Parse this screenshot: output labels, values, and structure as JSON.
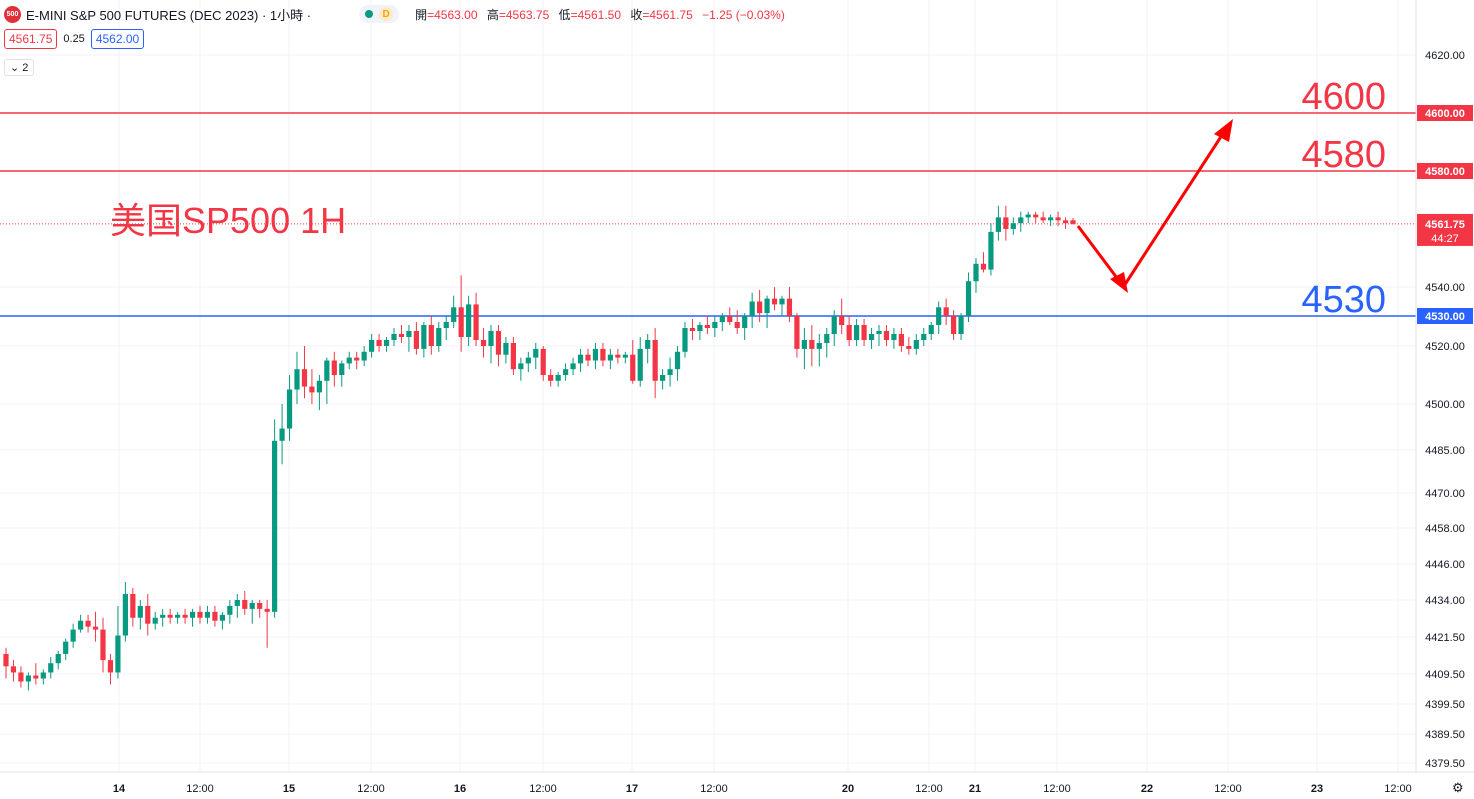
{
  "header": {
    "logo_text": "500",
    "title": "E-MINI S&P 500 FUTURES (DEC 2023) · 1小時 ·",
    "status_letter": "D",
    "ohlc": [
      {
        "label": "開",
        "value": "=4563.00"
      },
      {
        "label": "高",
        "value": "=4563.75"
      },
      {
        "label": "低",
        "value": "=4561.50"
      },
      {
        "label": "收",
        "value": "=4561.75"
      }
    ],
    "change": "−1.25 (−0.03%)"
  },
  "quote": {
    "sell": "4561.75",
    "spread": "0.25",
    "buy": "4562.00"
  },
  "collapse_label": "2",
  "chart_data": {
    "type": "candlestick",
    "title": "E-MINI S&P 500 FUTURES (DEC 2023)",
    "ylim": [
      4375,
      4640
    ],
    "y_ticks": [
      "4620.00",
      "4580.00",
      "4540.00",
      "4520.00",
      "4500.00",
      "4485.00",
      "4470.00",
      "4458.00",
      "4446.00",
      "4434.00",
      "4421.50",
      "4409.50",
      "4399.50",
      "4389.50",
      "4379.50"
    ],
    "x_ticks": [
      "14",
      "12:00",
      "15",
      "12:00",
      "16",
      "12:00",
      "17",
      "12:00",
      "20",
      "12:00",
      "21",
      "12:00",
      "22",
      "12:00",
      "23",
      "12:00"
    ],
    "annotation_text": "美国SP500 1H",
    "levels": [
      {
        "label": "4600",
        "price_tag": "4600.00",
        "value": 4600,
        "color": "#f23645"
      },
      {
        "label": "4580",
        "price_tag": "4580.00",
        "value": 4580,
        "color": "#f23645"
      },
      {
        "label": "4530",
        "price_tag": "4530.00",
        "value": 4530,
        "color": "#2962ff"
      }
    ],
    "last_price": {
      "value": 4561.75,
      "label": "4561.75",
      "countdown": "44:27",
      "color": "#f23645"
    },
    "forecast_arrow": {
      "points": [
        [
          4561.5,
          "21 13:00"
        ],
        [
          4540,
          "21 19:00"
        ],
        [
          4598,
          "22 05:00"
        ]
      ],
      "color": "#ff0000"
    },
    "candles_ohlc": [
      [
        4416,
        4418,
        4408,
        4412
      ],
      [
        4412,
        4414,
        4407,
        4410
      ],
      [
        4410,
        4412,
        4405,
        4407
      ],
      [
        4407,
        4410,
        4404,
        4409
      ],
      [
        4409,
        4413,
        4406,
        4408
      ],
      [
        4408,
        4411,
        4406,
        4410
      ],
      [
        4410,
        4415,
        4408,
        4413
      ],
      [
        4413,
        4417,
        4411,
        4416
      ],
      [
        4416,
        4421,
        4414,
        4420
      ],
      [
        4420,
        4426,
        4418,
        4424
      ],
      [
        4424,
        4429,
        4423,
        4427
      ],
      [
        4427,
        4429,
        4423,
        4425
      ],
      [
        4425,
        4430,
        4420,
        4424
      ],
      [
        4424,
        4428,
        4410,
        4414
      ],
      [
        4414,
        4416,
        4406,
        4410
      ],
      [
        4410,
        4432,
        4408,
        4422
      ],
      [
        4422,
        4440,
        4420,
        4436
      ],
      [
        4436,
        4438,
        4425,
        4428
      ],
      [
        4428,
        4434,
        4424,
        4432
      ],
      [
        4432,
        4436,
        4422,
        4426
      ],
      [
        4426,
        4430,
        4424,
        4428
      ],
      [
        4428,
        4431,
        4425,
        4429
      ],
      [
        4429,
        4431,
        4426,
        4428
      ],
      [
        4428,
        4430,
        4426,
        4429
      ],
      [
        4429,
        4431,
        4426,
        4428
      ],
      [
        4428,
        4431,
        4425,
        4430
      ],
      [
        4430,
        4432,
        4426,
        4428
      ],
      [
        4428,
        4432,
        4426,
        4430
      ],
      [
        4430,
        4432,
        4425,
        4427
      ],
      [
        4427,
        4430,
        4424,
        4429
      ],
      [
        4429,
        4434,
        4426,
        4432
      ],
      [
        4432,
        4436,
        4428,
        4434
      ],
      [
        4434,
        4437,
        4429,
        4431
      ],
      [
        4431,
        4434,
        4426,
        4433
      ],
      [
        4433,
        4434,
        4428,
        4431
      ],
      [
        4431,
        4434,
        4418,
        4430
      ],
      [
        4430,
        4495,
        4428,
        4488
      ],
      [
        4488,
        4500,
        4480,
        4492
      ],
      [
        4492,
        4510,
        4488,
        4505
      ],
      [
        4505,
        4518,
        4500,
        4512
      ],
      [
        4512,
        4520,
        4502,
        4506
      ],
      [
        4506,
        4512,
        4500,
        4504
      ],
      [
        4504,
        4510,
        4498,
        4508
      ],
      [
        4508,
        4516,
        4500,
        4515
      ],
      [
        4515,
        4518,
        4506,
        4510
      ],
      [
        4510,
        4515,
        4506,
        4514
      ],
      [
        4514,
        4518,
        4512,
        4516
      ],
      [
        4516,
        4518,
        4512,
        4515
      ],
      [
        4515,
        4520,
        4513,
        4518
      ],
      [
        4518,
        4524,
        4516,
        4522
      ],
      [
        4522,
        4524,
        4518,
        4520
      ],
      [
        4520,
        4523,
        4518,
        4522
      ],
      [
        4522,
        4526,
        4520,
        4524
      ],
      [
        4524,
        4527,
        4521,
        4523
      ],
      [
        4523,
        4527,
        4518,
        4525
      ],
      [
        4525,
        4528,
        4517,
        4519
      ],
      [
        4519,
        4528,
        4516,
        4527
      ],
      [
        4527,
        4530,
        4517,
        4520
      ],
      [
        4520,
        4528,
        4518,
        4526
      ],
      [
        4526,
        4530,
        4522,
        4528
      ],
      [
        4528,
        4537,
        4526,
        4533
      ],
      [
        4533,
        4544,
        4518,
        4523
      ],
      [
        4523,
        4537,
        4520,
        4534
      ],
      [
        4534,
        4538,
        4520,
        4522
      ],
      [
        4522,
        4526,
        4516,
        4520
      ],
      [
        4520,
        4527,
        4514,
        4525
      ],
      [
        4525,
        4527,
        4513,
        4517
      ],
      [
        4517,
        4523,
        4514,
        4521
      ],
      [
        4521,
        4523,
        4510,
        4512
      ],
      [
        4512,
        4516,
        4508,
        4514
      ],
      [
        4514,
        4518,
        4511,
        4516
      ],
      [
        4516,
        4521,
        4512,
        4519
      ],
      [
        4519,
        4520,
        4508,
        4510
      ],
      [
        4510,
        4512,
        4506,
        4508
      ],
      [
        4508,
        4511,
        4506,
        4510
      ],
      [
        4510,
        4514,
        4508,
        4512
      ],
      [
        4512,
        4516,
        4510,
        4514
      ],
      [
        4514,
        4519,
        4511,
        4517
      ],
      [
        4517,
        4519,
        4513,
        4515
      ],
      [
        4515,
        4521,
        4512,
        4519
      ],
      [
        4519,
        4521,
        4513,
        4515
      ],
      [
        4515,
        4519,
        4512,
        4517
      ],
      [
        4517,
        4519,
        4514,
        4516
      ],
      [
        4516,
        4518,
        4514,
        4517
      ],
      [
        4517,
        4522,
        4507,
        4508
      ],
      [
        4508,
        4523,
        4506,
        4519
      ],
      [
        4519,
        4524,
        4514,
        4522
      ],
      [
        4522,
        4526,
        4502,
        4508
      ],
      [
        4508,
        4512,
        4505,
        4510
      ],
      [
        4510,
        4516,
        4506,
        4512
      ],
      [
        4512,
        4520,
        4508,
        4518
      ],
      [
        4518,
        4528,
        4516,
        4526
      ],
      [
        4526,
        4529,
        4522,
        4525
      ],
      [
        4525,
        4528,
        4522,
        4527
      ],
      [
        4527,
        4530,
        4524,
        4526
      ],
      [
        4526,
        4530,
        4523,
        4528
      ],
      [
        4528,
        4531,
        4525,
        4530
      ],
      [
        4530,
        4533,
        4527,
        4528
      ],
      [
        4528,
        4532,
        4524,
        4526
      ],
      [
        4526,
        4531,
        4522,
        4530
      ],
      [
        4530,
        4538,
        4526,
        4535
      ],
      [
        4535,
        4539,
        4528,
        4531
      ],
      [
        4531,
        4537,
        4526,
        4536
      ],
      [
        4536,
        4540,
        4532,
        4534
      ],
      [
        4534,
        4537,
        4530,
        4536
      ],
      [
        4536,
        4540,
        4528,
        4530
      ],
      [
        4530,
        4531,
        4516,
        4519
      ],
      [
        4519,
        4526,
        4512,
        4522
      ],
      [
        4522,
        4527,
        4513,
        4519
      ],
      [
        4519,
        4524,
        4513,
        4521
      ],
      [
        4521,
        4526,
        4516,
        4524
      ],
      [
        4524,
        4532,
        4520,
        4530
      ],
      [
        4530,
        4536,
        4524,
        4527
      ],
      [
        4527,
        4530,
        4520,
        4522
      ],
      [
        4522,
        4529,
        4520,
        4527
      ],
      [
        4527,
        4529,
        4520,
        4522
      ],
      [
        4522,
        4526,
        4519,
        4524
      ],
      [
        4524,
        4527,
        4520,
        4525
      ],
      [
        4525,
        4527,
        4520,
        4522
      ],
      [
        4522,
        4526,
        4519,
        4524
      ],
      [
        4524,
        4526,
        4518,
        4520
      ],
      [
        4520,
        4523,
        4517,
        4519
      ],
      [
        4519,
        4524,
        4517,
        4522
      ],
      [
        4522,
        4526,
        4520,
        4524
      ],
      [
        4524,
        4528,
        4522,
        4527
      ],
      [
        4527,
        4535,
        4524,
        4533
      ],
      [
        4533,
        4536,
        4527,
        4530
      ],
      [
        4530,
        4532,
        4522,
        4524
      ],
      [
        4524,
        4531,
        4522,
        4530
      ],
      [
        4530,
        4545,
        4528,
        4542
      ],
      [
        4542,
        4550,
        4538,
        4548
      ],
      [
        4548,
        4552,
        4545,
        4546
      ],
      [
        4546,
        4562,
        4544,
        4559
      ],
      [
        4559,
        4568,
        4556,
        4564
      ],
      [
        4564,
        4568,
        4556,
        4560
      ],
      [
        4560,
        4564,
        4558,
        4562
      ],
      [
        4562,
        4566,
        4559,
        4564
      ],
      [
        4564,
        4566,
        4562,
        4565
      ],
      [
        4565,
        4566,
        4562,
        4564
      ],
      [
        4564,
        4566,
        4562,
        4563
      ],
      [
        4563,
        4565,
        4561,
        4564
      ],
      [
        4564,
        4566,
        4561,
        4563
      ],
      [
        4563,
        4564,
        4560,
        4562
      ],
      [
        4563.0,
        4563.75,
        4561.5,
        4561.75
      ]
    ]
  }
}
